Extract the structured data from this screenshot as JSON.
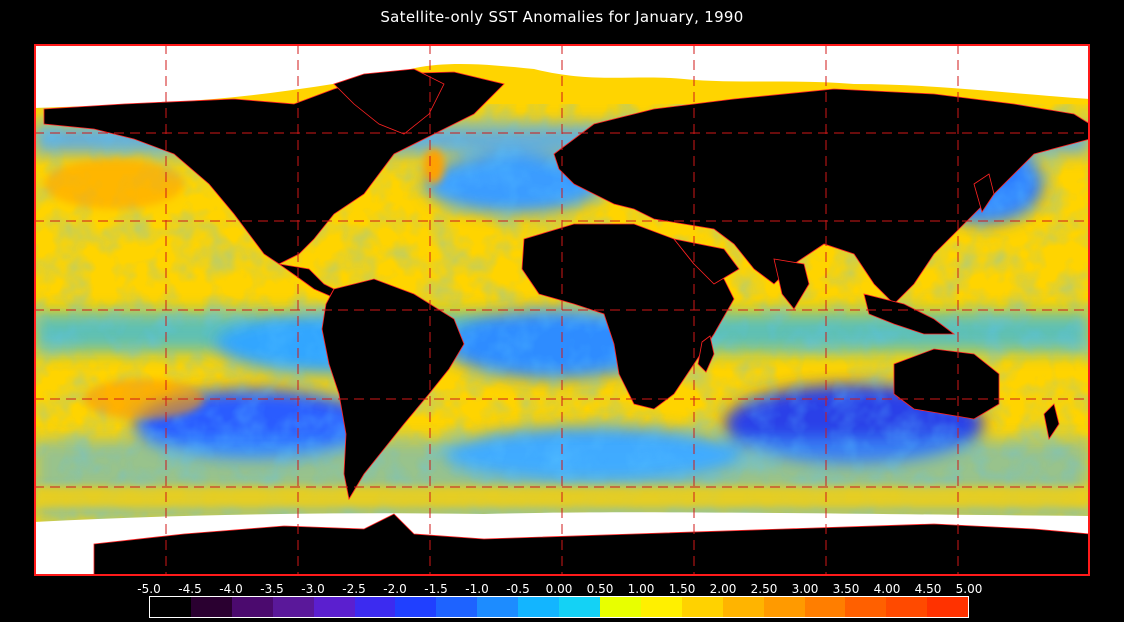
{
  "title": "Satellite-only SST Anomalies for January, 1990",
  "colors": {
    "background": "#000000",
    "frame": "#ff1a1a",
    "land": "#000000",
    "ice": "#ffffff",
    "grid": "#d01818"
  },
  "colorbar": {
    "tick_labels": [
      "-5.0",
      "-4.5",
      "-4.0",
      "-3.5",
      "-3.0",
      "-2.5",
      "-2.0",
      "-1.5",
      "-1.0",
      "-0.5",
      "0.00",
      "0.50",
      "1.00",
      "1.50",
      "2.00",
      "2.50",
      "3.00",
      "3.50",
      "4.00",
      "4.50",
      "5.00"
    ],
    "colors": [
      "#000000",
      "#2a0030",
      "#4b0a6e",
      "#5a189a",
      "#5b1fcf",
      "#3c2bf0",
      "#2040ff",
      "#1e63ff",
      "#1d8cff",
      "#13b5ff",
      "#14d2f5",
      "#e8ff00",
      "#fff000",
      "#ffd200",
      "#ffb400",
      "#ff9a00",
      "#ff7e00",
      "#ff6000",
      "#ff4a00",
      "#ff3200",
      "#ff1a00"
    ]
  }
}
